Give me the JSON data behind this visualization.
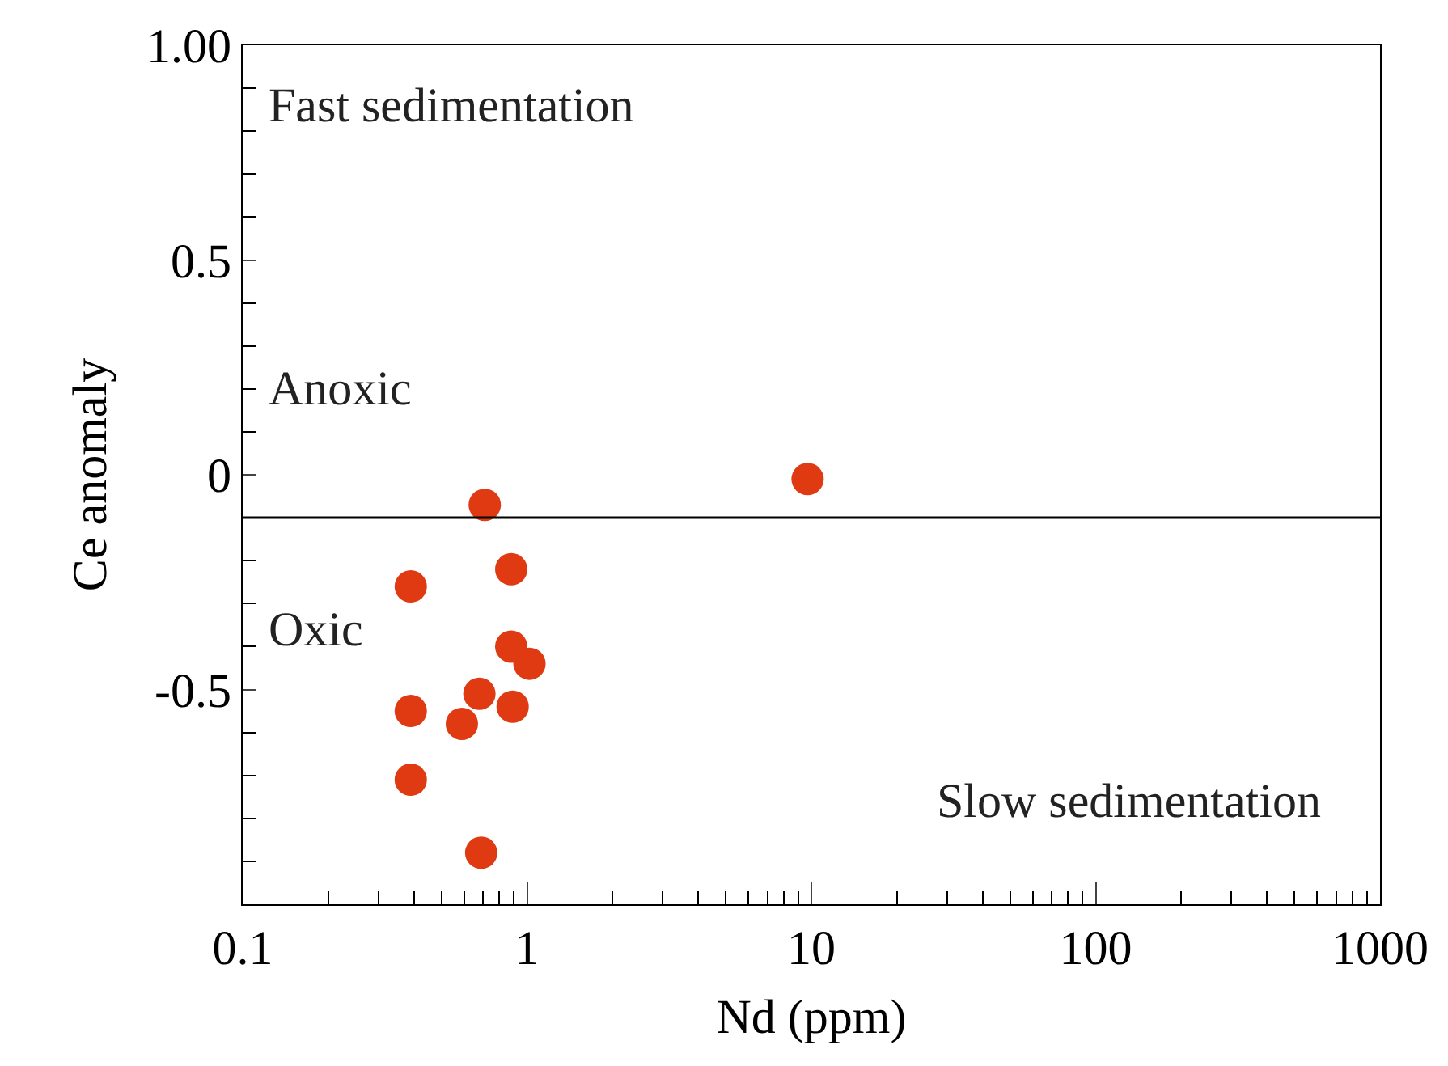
{
  "chart_data": {
    "type": "scatter",
    "xlabel": "Nd (ppm)",
    "ylabel": "Ce anomaly",
    "x": [
      0.71,
      0.88,
      0.39,
      0.88,
      1.02,
      0.68,
      0.39,
      0.89,
      0.59,
      0.39,
      0.69,
      9.7
    ],
    "values": [
      -0.07,
      -0.22,
      -0.26,
      -0.4,
      -0.44,
      -0.51,
      -0.55,
      -0.54,
      -0.58,
      -0.71,
      -0.88,
      -0.01
    ],
    "color": "#e03a12",
    "marker": "circle",
    "log": "x",
    "xlim": [
      0.1,
      1000
    ],
    "xticks": [
      0.1,
      1,
      10,
      100,
      1000
    ],
    "ylim": [
      -1,
      1
    ],
    "yticks": [
      {
        "value": 1,
        "label": "1.00"
      },
      0.5,
      0,
      -0.5
    ],
    "ref_lines": [
      {
        "axis": "y",
        "value": -0.1,
        "color": "#000000"
      }
    ],
    "annotations": [
      "Fast sedimentation",
      "Anoxic",
      "Oxic",
      "Slow sedimentation"
    ]
  }
}
